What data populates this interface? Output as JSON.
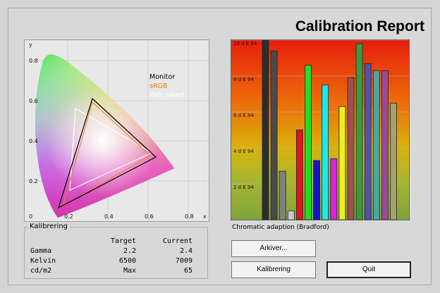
{
  "window": {
    "title": "Calibration Report"
  },
  "cie_plot": {
    "y_axis_label": "y",
    "x_axis_label": "x",
    "y_ticks": [
      "0.8",
      "0.6",
      "0.4",
      "0.2",
      "0"
    ],
    "x_ticks": [
      "0.2",
      "0.4",
      "0.6",
      "0.8"
    ],
    "legend": [
      {
        "label": "Monitor",
        "color": "#000000"
      },
      {
        "label": "sRGB",
        "color": "#e8801a"
      },
      {
        "label": "ISOcoated",
        "color": "#ffffff"
      }
    ]
  },
  "chart_data": {
    "type": "bar",
    "title": "",
    "caption": "Chromatic adaption (Bradford)",
    "y_unit": "d E 94",
    "y_ticks": [
      "10 d E 94",
      "8 d E 94",
      "6 d E 94",
      "4 d E 94",
      "2 d E 94"
    ],
    "ylim": [
      0,
      10
    ],
    "values": [
      10.0,
      9.4,
      2.7,
      0.5,
      5.0,
      8.6,
      3.3,
      7.5,
      3.4,
      6.3,
      7.9,
      9.8,
      8.7,
      8.3,
      8.3,
      6.5
    ],
    "colors": [
      "#2d2d2d",
      "#4a4a4a",
      "#808080",
      "#c8c8c8",
      "#e0141a",
      "#22dd22",
      "#1414c8",
      "#1ee8ee",
      "#dd22dd",
      "#eeee22",
      "#a05050",
      "#3c9a3c",
      "#5252a8",
      "#4aa6a6",
      "#9a4a9a",
      "#a6a06a"
    ]
  },
  "kalibrering": {
    "title": "Kalibrering",
    "headers": [
      "",
      "Target",
      "Current"
    ],
    "rows": [
      [
        "Gamma",
        "2.2",
        "2.4"
      ],
      [
        "Kelvin",
        "6500",
        "7009"
      ],
      [
        "cd/m2",
        "Max",
        "65"
      ]
    ]
  },
  "buttons": {
    "archive": "Arkiver...",
    "calibrate": "Kalibrering",
    "quit": "Quit"
  }
}
